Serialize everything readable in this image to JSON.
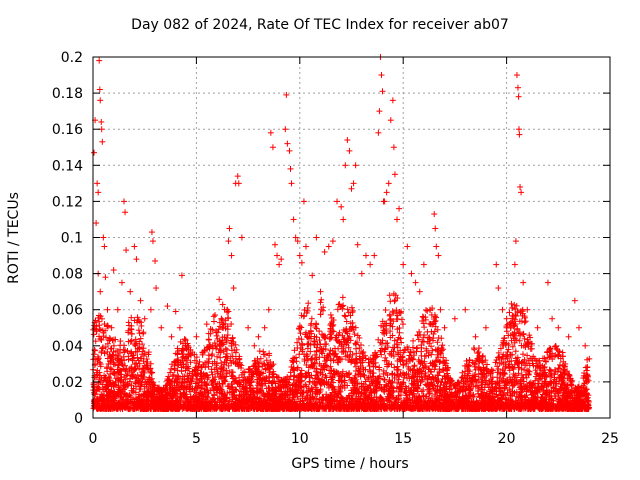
{
  "chart_data": {
    "type": "scatter",
    "title": "Day 082 of 2024, Rate Of TEC Index for receiver ab07",
    "xlabel": "GPS time / hours",
    "ylabel": "ROTI / TECUs",
    "xlim": [
      0,
      25
    ],
    "ylim": [
      0,
      0.2
    ],
    "xticks": [
      0,
      5,
      10,
      15,
      20,
      25
    ],
    "yticks": [
      0,
      0.02,
      0.04,
      0.06,
      0.08,
      0.1,
      0.12,
      0.14,
      0.16,
      0.18,
      0.2
    ],
    "grid": true,
    "marker": "+",
    "color": "#ff0000",
    "series": [
      {
        "points": [
          [
            0.05,
            0.147
          ],
          [
            0.1,
            0.165
          ],
          [
            0.15,
            0.108
          ],
          [
            0.2,
            0.13
          ],
          [
            0.25,
            0.125
          ],
          [
            0.3,
            0.198
          ],
          [
            0.33,
            0.182
          ],
          [
            0.35,
            0.176
          ],
          [
            0.4,
            0.164
          ],
          [
            0.42,
            0.16
          ],
          [
            0.45,
            0.153
          ],
          [
            0.5,
            0.1
          ],
          [
            0.55,
            0.095
          ],
          [
            0.25,
            0.08
          ],
          [
            0.35,
            0.07
          ],
          [
            0.6,
            0.078
          ],
          [
            0.7,
            0.06
          ],
          [
            0.9,
            0.05
          ],
          [
            1.0,
            0.082
          ],
          [
            1.2,
            0.06
          ],
          [
            1.4,
            0.075
          ],
          [
            1.5,
            0.12
          ],
          [
            1.55,
            0.114
          ],
          [
            1.6,
            0.093
          ],
          [
            1.8,
            0.07
          ],
          [
            2.0,
            0.095
          ],
          [
            2.1,
            0.088
          ],
          [
            2.3,
            0.065
          ],
          [
            2.5,
            0.055
          ],
          [
            2.8,
            0.06
          ],
          [
            2.85,
            0.103
          ],
          [
            2.9,
            0.098
          ],
          [
            3.0,
            0.087
          ],
          [
            3.05,
            0.072
          ],
          [
            3.3,
            0.05
          ],
          [
            3.6,
            0.062
          ],
          [
            3.8,
            0.045
          ],
          [
            4.0,
            0.059
          ],
          [
            4.2,
            0.05
          ],
          [
            4.3,
            0.079
          ],
          [
            4.6,
            0.04
          ],
          [
            5.0,
            0.045
          ],
          [
            5.3,
            0.035
          ],
          [
            5.5,
            0.052
          ],
          [
            5.8,
            0.04
          ],
          [
            6.0,
            0.04
          ],
          [
            6.3,
            0.05
          ],
          [
            6.5,
            0.06
          ],
          [
            6.55,
            0.098
          ],
          [
            6.6,
            0.105
          ],
          [
            6.7,
            0.09
          ],
          [
            6.8,
            0.072
          ],
          [
            6.9,
            0.13
          ],
          [
            7.0,
            0.134
          ],
          [
            7.05,
            0.13
          ],
          [
            7.2,
            0.1
          ],
          [
            7.5,
            0.05
          ],
          [
            7.8,
            0.04
          ],
          [
            8.0,
            0.045
          ],
          [
            8.3,
            0.05
          ],
          [
            8.5,
            0.06
          ],
          [
            8.6,
            0.158
          ],
          [
            8.7,
            0.15
          ],
          [
            8.8,
            0.096
          ],
          [
            8.9,
            0.09
          ],
          [
            9.0,
            0.085
          ],
          [
            9.1,
            0.088
          ],
          [
            9.3,
            0.16
          ],
          [
            9.35,
            0.179
          ],
          [
            9.4,
            0.152
          ],
          [
            9.5,
            0.148
          ],
          [
            9.55,
            0.138
          ],
          [
            9.6,
            0.13
          ],
          [
            9.7,
            0.11
          ],
          [
            9.8,
            0.1
          ],
          [
            9.9,
            0.098
          ],
          [
            10.0,
            0.09
          ],
          [
            10.1,
            0.086
          ],
          [
            10.2,
            0.12
          ],
          [
            10.3,
            0.095
          ],
          [
            10.6,
            0.079
          ],
          [
            10.8,
            0.1
          ],
          [
            11.0,
            0.07
          ],
          [
            11.2,
            0.092
          ],
          [
            11.4,
            0.095
          ],
          [
            11.6,
            0.098
          ],
          [
            11.8,
            0.12
          ],
          [
            12.0,
            0.117
          ],
          [
            12.1,
            0.11
          ],
          [
            12.2,
            0.14
          ],
          [
            12.3,
            0.154
          ],
          [
            12.4,
            0.148
          ],
          [
            12.5,
            0.127
          ],
          [
            12.6,
            0.13
          ],
          [
            12.7,
            0.14
          ],
          [
            12.8,
            0.096
          ],
          [
            13.0,
            0.08
          ],
          [
            13.2,
            0.09
          ],
          [
            13.4,
            0.085
          ],
          [
            13.6,
            0.09
          ],
          [
            13.8,
            0.158
          ],
          [
            13.85,
            0.17
          ],
          [
            13.9,
            0.2
          ],
          [
            13.95,
            0.19
          ],
          [
            14.0,
            0.181
          ],
          [
            14.05,
            0.12
          ],
          [
            14.1,
            0.12
          ],
          [
            14.2,
            0.125
          ],
          [
            14.3,
            0.13
          ],
          [
            14.4,
            0.165
          ],
          [
            14.5,
            0.176
          ],
          [
            14.55,
            0.15
          ],
          [
            14.6,
            0.135
          ],
          [
            14.7,
            0.11
          ],
          [
            14.8,
            0.116
          ],
          [
            15.0,
            0.085
          ],
          [
            15.2,
            0.095
          ],
          [
            15.4,
            0.08
          ],
          [
            15.6,
            0.075
          ],
          [
            15.8,
            0.07
          ],
          [
            16.0,
            0.085
          ],
          [
            16.3,
            0.06
          ],
          [
            16.5,
            0.113
          ],
          [
            16.55,
            0.105
          ],
          [
            16.6,
            0.095
          ],
          [
            16.7,
            0.09
          ],
          [
            16.8,
            0.06
          ],
          [
            17.0,
            0.05
          ],
          [
            17.5,
            0.055
          ],
          [
            18.0,
            0.06
          ],
          [
            18.5,
            0.045
          ],
          [
            19.0,
            0.05
          ],
          [
            19.5,
            0.085
          ],
          [
            19.6,
            0.072
          ],
          [
            19.8,
            0.06
          ],
          [
            20.0,
            0.055
          ],
          [
            20.2,
            0.05
          ],
          [
            20.4,
            0.085
          ],
          [
            20.45,
            0.098
          ],
          [
            20.5,
            0.19
          ],
          [
            20.55,
            0.183
          ],
          [
            20.58,
            0.178
          ],
          [
            20.6,
            0.16
          ],
          [
            20.62,
            0.157
          ],
          [
            20.65,
            0.128
          ],
          [
            20.7,
            0.125
          ],
          [
            20.8,
            0.075
          ],
          [
            21.0,
            0.06
          ],
          [
            21.5,
            0.05
          ],
          [
            22.0,
            0.075
          ],
          [
            22.2,
            0.055
          ],
          [
            22.5,
            0.05
          ],
          [
            23.0,
            0.045
          ],
          [
            23.3,
            0.065
          ],
          [
            23.5,
            0.05
          ],
          [
            23.8,
            0.04
          ]
        ]
      }
    ]
  }
}
